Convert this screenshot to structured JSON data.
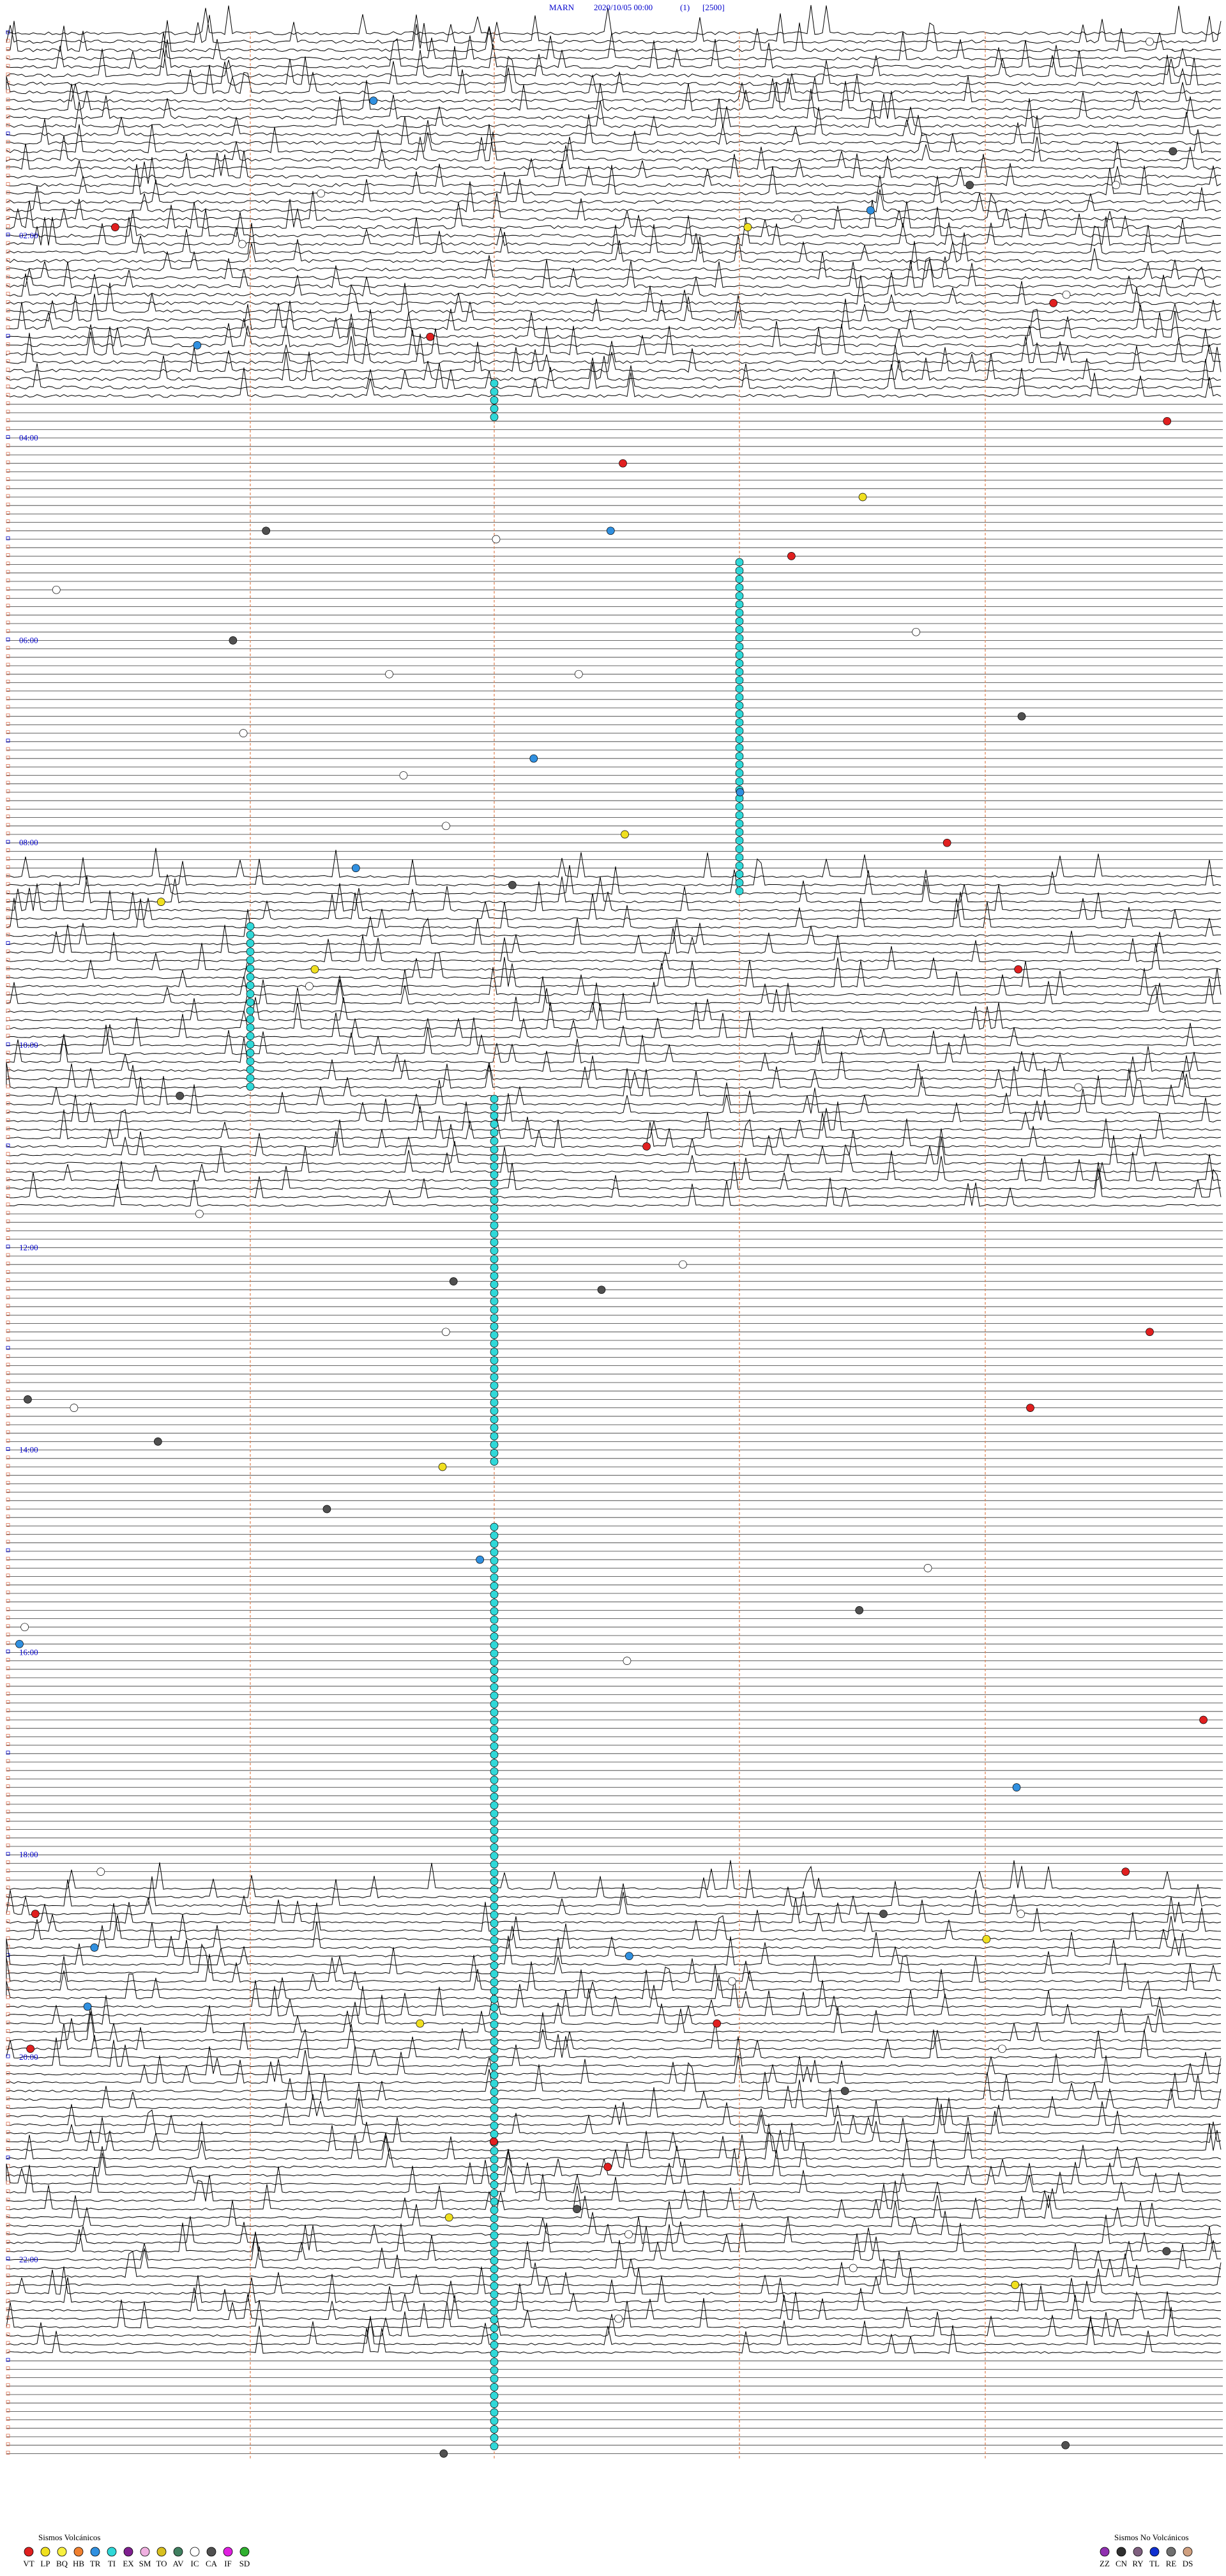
{
  "header": {
    "station": "MARN",
    "datetime": "2020/10/05 00:00",
    "channel": "(1)",
    "scale": "[2500]"
  },
  "time_labels": [
    "02:00",
    "04:00",
    "06:00",
    "08:00",
    "10:00",
    "12:00",
    "14:00",
    "16:00",
    "18:00",
    "20:00",
    "22:00"
  ],
  "legend_volcanic": {
    "title": "Sismos Volcánicos",
    "items": [
      {
        "code": "VT",
        "color": "#e02020"
      },
      {
        "code": "LP",
        "color": "#f0e020"
      },
      {
        "code": "BQ",
        "color": "#f8f040"
      },
      {
        "code": "HB",
        "color": "#f08030"
      },
      {
        "code": "TR",
        "color": "#3090e0"
      },
      {
        "code": "TI",
        "color": "#30d8d8"
      },
      {
        "code": "EX",
        "color": "#802090"
      },
      {
        "code": "SM",
        "color": "#f0b0e0"
      },
      {
        "code": "TO",
        "color": "#d8c020"
      },
      {
        "code": "AV",
        "color": "#408060"
      },
      {
        "code": "IC",
        "color": "#ffffff"
      },
      {
        "code": "CA",
        "color": "#505050"
      },
      {
        "code": "IF",
        "color": "#e020e0"
      },
      {
        "code": "SD",
        "color": "#30b030"
      }
    ]
  },
  "legend_non_volcanic": {
    "title": "Sismos No Volcánicos",
    "items": [
      {
        "code": "ZZ",
        "color": "#9030b0"
      },
      {
        "code": "CN",
        "color": "#303030"
      },
      {
        "code": "RY",
        "color": "#806080"
      },
      {
        "code": "TL",
        "color": "#1030d0"
      },
      {
        "code": "RE",
        "color": "#707070"
      },
      {
        "code": "DS",
        "color": "#d0a080"
      }
    ]
  }
}
